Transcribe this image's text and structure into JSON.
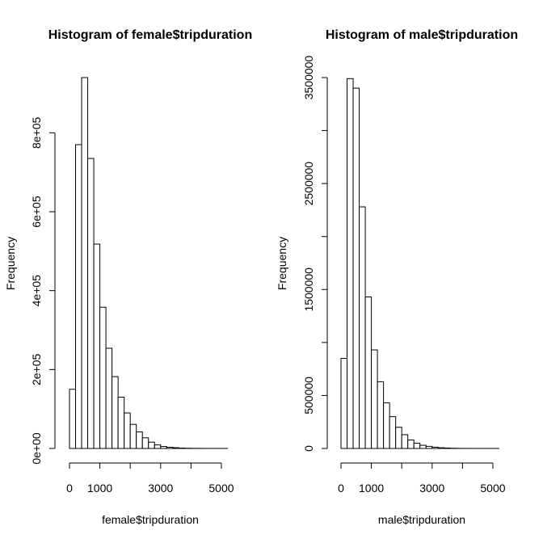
{
  "chart_data": [
    {
      "type": "bar",
      "title": "Histogram of female$tripduration",
      "xlabel": "female$tripduration",
      "ylabel": "Frequency",
      "xlim": [
        0,
        5400
      ],
      "ylim": [
        0,
        940000
      ],
      "bin_width": 200,
      "bin_start": 0,
      "values": [
        150000,
        770000,
        940000,
        735000,
        518000,
        358000,
        254000,
        182000,
        130000,
        90000,
        61000,
        42000,
        27000,
        16000,
        9000,
        5000,
        3000,
        2000,
        1000,
        500,
        300,
        200,
        100,
        100,
        100,
        100
      ],
      "x_ticks": [
        0,
        1000,
        2000,
        3000,
        4000,
        5000
      ],
      "x_tick_labels": [
        "0",
        "1000",
        "",
        "3000",
        "",
        "5000"
      ],
      "y_ticks": [
        0,
        200000,
        400000,
        600000,
        800000
      ],
      "y_tick_labels": [
        "0e+00",
        "2e+05",
        "4e+05",
        "6e+05",
        "8e+05"
      ]
    },
    {
      "type": "bar",
      "title": "Histogram of male$tripduration",
      "xlabel": "male$tripduration",
      "ylabel": "Frequency",
      "xlim": [
        0,
        5400
      ],
      "ylim": [
        0,
        3500000
      ],
      "bin_width": 200,
      "bin_start": 0,
      "values": [
        850000,
        3490000,
        3400000,
        2280000,
        1430000,
        930000,
        630000,
        430000,
        300000,
        200000,
        130000,
        80000,
        50000,
        30000,
        20000,
        12000,
        7000,
        4000,
        2000,
        1000,
        500,
        300,
        200,
        100,
        100,
        100
      ],
      "x_ticks": [
        0,
        1000,
        2000,
        3000,
        4000,
        5000
      ],
      "x_tick_labels": [
        "0",
        "1000",
        "",
        "3000",
        "",
        "5000"
      ],
      "y_ticks": [
        0,
        500000,
        1000000,
        1500000,
        2000000,
        2500000,
        3000000,
        3500000
      ],
      "y_tick_labels": [
        "0",
        "500000",
        "",
        "1500000",
        "",
        "2500000",
        "",
        "3500000"
      ]
    }
  ]
}
